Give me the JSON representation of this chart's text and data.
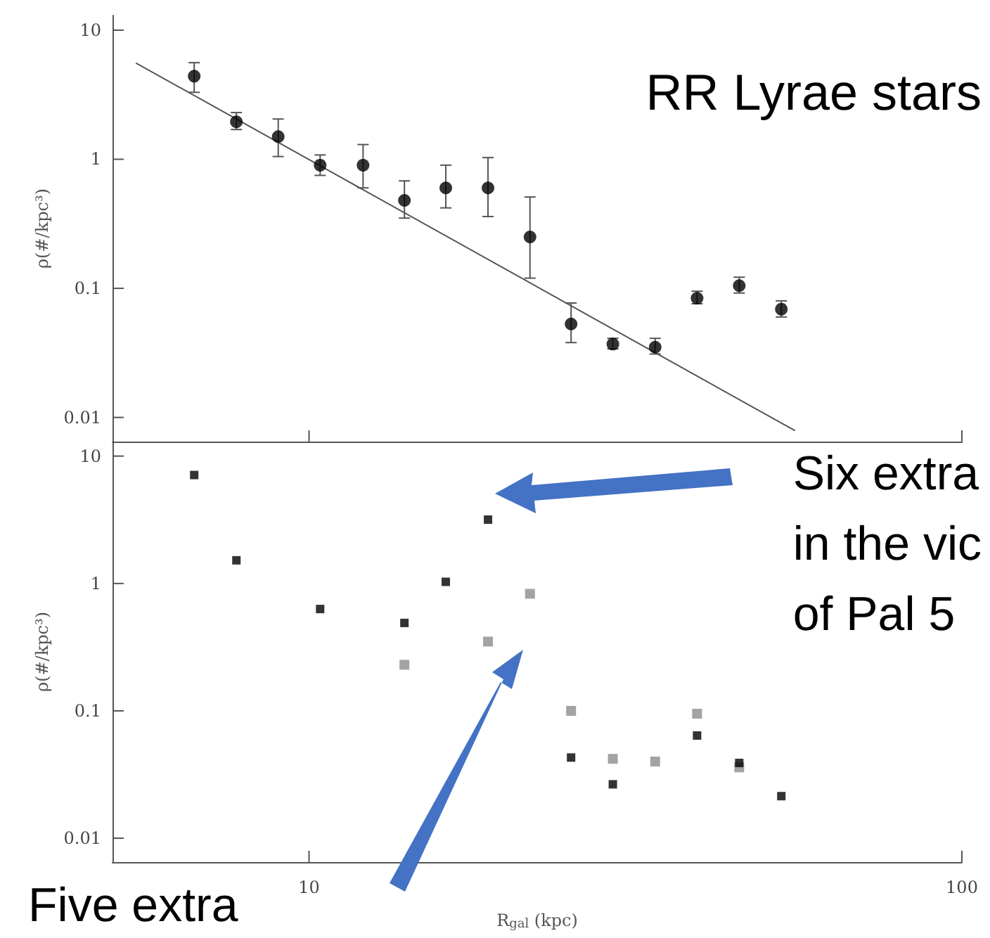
{
  "chart_data": [
    {
      "type": "scatter",
      "ylabel": "ρ(#/kpc³)",
      "annotations": [
        "RR Lyrae stars"
      ],
      "log": "xy",
      "marker": "circle",
      "tick_labels": "y",
      "xlim": [
        5,
        100
      ],
      "xticks": [
        {
          "value": 10,
          "label": null
        },
        {
          "value": 100,
          "label": null
        }
      ],
      "ylim": [
        0.0065,
        13
      ],
      "yticks": [
        0.01,
        0.1,
        1,
        10
      ],
      "series": [
        {
          "color": "#000000",
          "x": [
            6.67,
            7.74,
            8.97,
            10.4,
            12.1,
            14.0,
            16.2,
            18.8,
            21.8,
            25.2,
            29.2,
            33.9,
            39.3,
            45.6,
            52.9
          ],
          "values": [
            4.4,
            1.95,
            1.5,
            0.9,
            0.9,
            0.48,
            0.6,
            0.6,
            0.25,
            0.053,
            0.037,
            0.035,
            0.084,
            0.105,
            0.069
          ],
          "errors": [
            [
              3.3,
              5.6
            ],
            [
              1.7,
              2.3
            ],
            [
              1.05,
              2.05
            ],
            [
              0.75,
              1.08
            ],
            [
              0.6,
              1.3
            ],
            [
              0.35,
              0.68
            ],
            [
              0.42,
              0.9
            ],
            [
              0.36,
              1.03
            ],
            [
              0.12,
              0.51
            ],
            [
              0.038,
              0.077
            ],
            [
              0.034,
              0.041
            ],
            [
              0.031,
              0.041
            ],
            [
              0.076,
              0.095
            ],
            [
              0.092,
              0.122
            ],
            [
              0.06,
              0.08
            ]
          ]
        },
        {
          "type": "line",
          "marker": "none",
          "color": "#555555",
          "x": [
            5.43,
            55.5
          ],
          "values": [
            5.57,
            0.0079
          ]
        }
      ]
    },
    {
      "type": "scatter",
      "xlabel": "R$_{gal}$ (kpc)",
      "ylabel": "ρ(#/kpc³)",
      "annotations": [
        "Six extra\nin the vic\nof Pal 5",
        "Five extra"
      ],
      "log": "xy",
      "marker": "square",
      "xlim": [
        5,
        100
      ],
      "xticks": [
        10,
        100
      ],
      "ylim": [
        0.0065,
        13
      ],
      "yticks": [
        0.01,
        0.1,
        1,
        10
      ],
      "series": [
        {
          "color": "#000000",
          "x": [
            6.67,
            7.74,
            10.4,
            14.0,
            16.2,
            18.8,
            25.2,
            29.2,
            39.3,
            45.6,
            52.9
          ],
          "values": [
            7.1,
            1.52,
            0.63,
            0.49,
            1.03,
            3.17,
            0.043,
            0.0265,
            0.064,
            0.039,
            0.0214
          ]
        },
        {
          "color": "#8c8c8c",
          "x": [
            14.0,
            18.8,
            21.8,
            25.2,
            29.2,
            33.9,
            39.3,
            45.6
          ],
          "values": [
            0.23,
            0.35,
            0.83,
            0.1,
            0.042,
            0.04,
            0.095,
            0.036
          ]
        }
      ]
    }
  ]
}
